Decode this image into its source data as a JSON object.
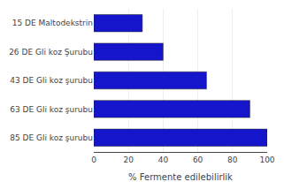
{
  "chart_data": {
    "type": "bar",
    "orientation": "horizontal",
    "categories": [
      "85 DE Gli koz şurubu",
      "63 DE Gli koz şurubu",
      "43 DE Gli koz şurubu",
      "26 DE Gli koz Şurubu",
      "15 DE Maltodekstrin"
    ],
    "values": [
      100,
      90,
      65,
      40,
      28
    ],
    "color": "#1515CC",
    "xlabel": "% Fermente edilebilirlik",
    "xlim": [
      0,
      100
    ],
    "xticks": [
      0,
      20,
      40,
      60,
      80,
      100
    ],
    "grid": true
  }
}
